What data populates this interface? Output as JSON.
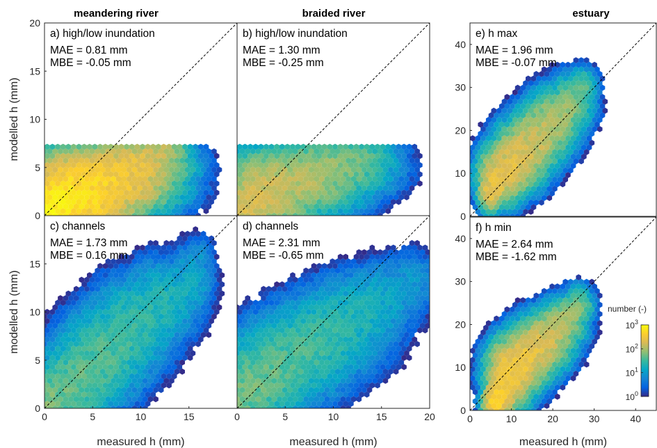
{
  "chart_data": [
    {
      "id": "a",
      "type": "scatter",
      "subtype": "hexbin-density",
      "column_title": "meandering river",
      "label": "a) high/low inundation",
      "mae": "MAE = 0.81 mm",
      "mbe": "MBE = -0.05 mm",
      "xlim": [
        0,
        20
      ],
      "ylim": [
        0,
        20
      ],
      "xticks": [],
      "yticks": [
        0,
        5,
        10,
        15,
        20
      ],
      "xlabel": "",
      "ylabel": "modelled h (mm)",
      "identity_line": true,
      "density_clusters": [
        {
          "x": [
            0,
            1.5,
            3.5,
            6,
            9,
            12
          ],
          "y": [
            0,
            1.3,
            2.3,
            3.5,
            5,
            6.5
          ],
          "spread_x": [
            1.2,
            2,
            3.2,
            3.5,
            2.8,
            1.5
          ],
          "spread_y": [
            1.2,
            1.8,
            2.2,
            1.8,
            1.5,
            1
          ],
          "ymax": 7.5,
          "peak": 1000
        },
        {
          "x": [
            0.5,
            1.2
          ],
          "y": [
            0.5,
            1.2
          ],
          "spread_x": [
            0.5,
            0.6
          ],
          "spread_y": [
            0.6,
            0.8
          ],
          "peak": 900
        }
      ]
    },
    {
      "id": "b",
      "type": "scatter",
      "subtype": "hexbin-density",
      "column_title": "braided river",
      "label": "b) high/low inundation",
      "mae": "MAE = 1.30 mm",
      "mbe": "MBE = -0.25 mm",
      "xlim": [
        0,
        20
      ],
      "ylim": [
        0,
        20
      ],
      "xticks": [],
      "yticks": [],
      "xlabel": "",
      "ylabel": "",
      "identity_line": true,
      "density_clusters": [
        {
          "x": [
            0,
            3,
            6,
            9,
            12,
            14
          ],
          "y": [
            0,
            2.5,
            3.8,
            4.8,
            5.8,
            6.5
          ],
          "spread_x": [
            2.2,
            3.2,
            3.8,
            3.5,
            2.5,
            1.5
          ],
          "spread_y": [
            1.3,
            2.2,
            2,
            1.8,
            1.5,
            1
          ],
          "ymax": 7.5,
          "peak": 200
        },
        {
          "x": [
            0.3,
            0.8
          ],
          "y": [
            0.3,
            0.8
          ],
          "spread_x": [
            0.8,
            0.9
          ],
          "spread_y": [
            0.6,
            0.7
          ],
          "peak": 150
        }
      ]
    },
    {
      "id": "c",
      "type": "scatter",
      "subtype": "hexbin-density",
      "label": "c) channels",
      "mae": "MAE = 1.73 mm",
      "mbe": "MBE = 0.16 mm",
      "xlim": [
        0,
        20
      ],
      "ylim": [
        0,
        20
      ],
      "xticks": [
        0,
        5,
        10,
        15
      ],
      "yticks": [
        0,
        5,
        10,
        15
      ],
      "xlabel": "measured h (mm)",
      "ylabel": "modelled h (mm)",
      "identity_line": true,
      "density_clusters": [
        {
          "x": [
            0,
            3,
            6,
            9,
            12,
            15,
            16
          ],
          "y": [
            0.5,
            2.5,
            5.5,
            8.5,
            11,
            13,
            15.5
          ],
          "spread_x": [
            1.8,
            2.2,
            2.5,
            2.5,
            2.3,
            1.5,
            1
          ],
          "spread_y": [
            1.5,
            2.5,
            2.8,
            2.8,
            2.5,
            2.2,
            1.5
          ],
          "peak": 60
        }
      ]
    },
    {
      "id": "d",
      "type": "scatter",
      "subtype": "hexbin-density",
      "label": "d) channels",
      "mae": "MAE = 2.31 mm",
      "mbe": "MBE = -0.65 mm",
      "xlim": [
        0,
        20
      ],
      "ylim": [
        0,
        20
      ],
      "xticks": [
        0,
        5,
        10,
        15,
        20
      ],
      "yticks": [],
      "xlabel": "measured h (mm)",
      "ylabel": "",
      "identity_line": true,
      "density_clusters": [
        {
          "x": [
            0,
            3,
            6,
            9,
            12,
            15,
            18
          ],
          "y": [
            1,
            3.5,
            5.5,
            7.5,
            9.5,
            11.5,
            13
          ],
          "spread_x": [
            2,
            3,
            3.5,
            3.5,
            3,
            2.5,
            2
          ],
          "spread_y": [
            1.8,
            2.5,
            2.5,
            2.5,
            2.5,
            2.2,
            2
          ],
          "peak": 60
        }
      ]
    },
    {
      "id": "e",
      "type": "scatter",
      "subtype": "hexbin-density",
      "column_title": "estuary",
      "label": "e) h max",
      "mae": "MAE = 1.96 mm",
      "mbe": "MBE = -0.07 mm",
      "xlim": [
        0,
        45
      ],
      "ylim": [
        0,
        45
      ],
      "xticks": [],
      "yticks": [
        0,
        10,
        20,
        30,
        40
      ],
      "xlabel": "",
      "ylabel": "",
      "identity_line": true,
      "density_clusters": [
        {
          "x": [
            5,
            8,
            12,
            16,
            20,
            24,
            27
          ],
          "y": [
            6,
            10,
            14,
            18,
            22,
            26,
            30
          ],
          "spread_x": [
            1.5,
            3,
            3.5,
            3.5,
            3.5,
            3,
            2
          ],
          "spread_y": [
            2.5,
            3.5,
            4,
            4,
            4,
            3.5,
            2.5
          ],
          "peak": 300
        }
      ]
    },
    {
      "id": "f",
      "type": "scatter",
      "subtype": "hexbin-density",
      "label": "f) h min",
      "mae": "MAE = 2.64 mm",
      "mbe": "MBE = -1.62 mm",
      "xlim": [
        0,
        45
      ],
      "ylim": [
        0,
        45
      ],
      "xticks": [
        0,
        10,
        20,
        30,
        40
      ],
      "yticks": [
        0,
        10,
        20,
        30,
        40
      ],
      "xlabel": "measured h (mm)",
      "ylabel": "",
      "identity_line": true,
      "density_clusters": [
        {
          "x": [
            6,
            8,
            10,
            14,
            18,
            22,
            26
          ],
          "y": [
            2,
            5,
            9,
            13,
            16,
            20,
            24
          ],
          "spread_x": [
            1.5,
            2,
            3,
            3.5,
            3.5,
            3,
            2
          ],
          "spread_y": [
            2,
            3,
            4,
            3.5,
            3.5,
            3,
            2.5
          ],
          "peak": 500
        },
        {
          "x": [
            7,
            8
          ],
          "y": [
            2,
            6
          ],
          "spread_x": [
            0.8,
            0.8
          ],
          "spread_y": [
            2,
            3
          ],
          "peak": 600
        }
      ]
    }
  ],
  "colorbar": {
    "label": "number (-)",
    "scale": "log",
    "range": [
      1,
      1000
    ],
    "ticks": [
      {
        "value": 1,
        "base": "10",
        "exp": "0"
      },
      {
        "value": 10,
        "base": "10",
        "exp": "1"
      },
      {
        "value": 100,
        "base": "10",
        "exp": "2"
      },
      {
        "value": 1000,
        "base": "10",
        "exp": "3"
      }
    ],
    "colormap": [
      "#352a87",
      "#0363e1",
      "#1485d4",
      "#06a7c6",
      "#38b99e",
      "#92bf73",
      "#d9ba56",
      "#fcce2e",
      "#f9fb0e"
    ]
  }
}
